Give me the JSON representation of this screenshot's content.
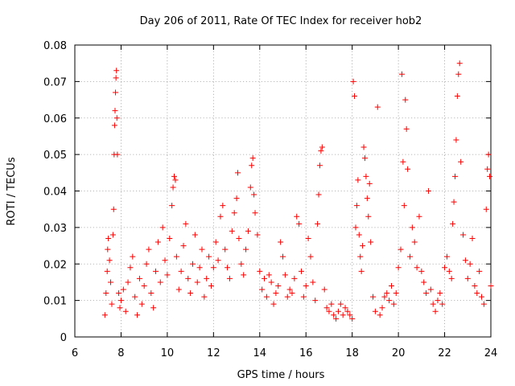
{
  "chart_data": {
    "type": "scatter",
    "title": "Day 206 of 2011, Rate Of TEC Index for receiver hob2",
    "xlabel": "GPS time / hours",
    "ylabel": "ROTI / TECUs",
    "xlim": [
      6,
      24
    ],
    "ylim": [
      0,
      0.08
    ],
    "xticks": [
      6,
      8,
      10,
      12,
      14,
      16,
      18,
      20,
      22,
      24
    ],
    "xtick_labels": [
      "6",
      "8",
      "10",
      "12",
      "14",
      "16",
      "18",
      "20",
      "22",
      "24"
    ],
    "yticks": [
      0,
      0.01,
      0.02,
      0.03,
      0.04,
      0.05,
      0.06,
      0.07,
      0.08
    ],
    "ytick_labels": [
      "0",
      "0.01",
      "0.02",
      "0.03",
      "0.04",
      "0.05",
      "0.06",
      "0.07",
      "0.08"
    ],
    "grid": true,
    "marker": "+",
    "color": "#ff0000",
    "series": [
      {
        "name": "ROTI",
        "points": [
          [
            7.3,
            0.006
          ],
          [
            7.35,
            0.012
          ],
          [
            7.4,
            0.018
          ],
          [
            7.42,
            0.024
          ],
          [
            7.45,
            0.027
          ],
          [
            7.5,
            0.021
          ],
          [
            7.55,
            0.015
          ],
          [
            7.6,
            0.009
          ],
          [
            7.65,
            0.028
          ],
          [
            7.68,
            0.035
          ],
          [
            7.7,
            0.05
          ],
          [
            7.72,
            0.058
          ],
          [
            7.74,
            0.062
          ],
          [
            7.76,
            0.067
          ],
          [
            7.78,
            0.071
          ],
          [
            7.8,
            0.073
          ],
          [
            7.82,
            0.06
          ],
          [
            7.84,
            0.05
          ],
          [
            7.9,
            0.012
          ],
          [
            7.95,
            0.008
          ],
          [
            8.0,
            0.01
          ],
          [
            8.1,
            0.013
          ],
          [
            8.2,
            0.007
          ],
          [
            8.3,
            0.015
          ],
          [
            8.4,
            0.019
          ],
          [
            8.5,
            0.022
          ],
          [
            8.6,
            0.011
          ],
          [
            8.7,
            0.006
          ],
          [
            8.8,
            0.016
          ],
          [
            8.9,
            0.009
          ],
          [
            9.0,
            0.014
          ],
          [
            9.1,
            0.02
          ],
          [
            9.2,
            0.024
          ],
          [
            9.3,
            0.012
          ],
          [
            9.4,
            0.008
          ],
          [
            9.5,
            0.018
          ],
          [
            9.6,
            0.026
          ],
          [
            9.7,
            0.015
          ],
          [
            9.8,
            0.03
          ],
          [
            9.9,
            0.021
          ],
          [
            10.0,
            0.017
          ],
          [
            10.1,
            0.027
          ],
          [
            10.2,
            0.036
          ],
          [
            10.25,
            0.041
          ],
          [
            10.3,
            0.044
          ],
          [
            10.35,
            0.043
          ],
          [
            10.4,
            0.022
          ],
          [
            10.5,
            0.013
          ],
          [
            10.6,
            0.018
          ],
          [
            10.7,
            0.025
          ],
          [
            10.8,
            0.031
          ],
          [
            10.9,
            0.016
          ],
          [
            11.0,
            0.012
          ],
          [
            11.1,
            0.02
          ],
          [
            11.2,
            0.028
          ],
          [
            11.3,
            0.015
          ],
          [
            11.4,
            0.019
          ],
          [
            11.5,
            0.024
          ],
          [
            11.6,
            0.011
          ],
          [
            11.7,
            0.016
          ],
          [
            11.8,
            0.022
          ],
          [
            11.9,
            0.014
          ],
          [
            12.0,
            0.019
          ],
          [
            12.1,
            0.026
          ],
          [
            12.2,
            0.021
          ],
          [
            12.3,
            0.033
          ],
          [
            12.4,
            0.036
          ],
          [
            12.5,
            0.024
          ],
          [
            12.6,
            0.019
          ],
          [
            12.7,
            0.016
          ],
          [
            12.8,
            0.029
          ],
          [
            12.9,
            0.034
          ],
          [
            13.0,
            0.038
          ],
          [
            13.05,
            0.045
          ],
          [
            13.1,
            0.027
          ],
          [
            13.2,
            0.02
          ],
          [
            13.3,
            0.017
          ],
          [
            13.4,
            0.024
          ],
          [
            13.5,
            0.029
          ],
          [
            13.6,
            0.041
          ],
          [
            13.65,
            0.047
          ],
          [
            13.7,
            0.049
          ],
          [
            13.75,
            0.039
          ],
          [
            13.8,
            0.034
          ],
          [
            13.9,
            0.028
          ],
          [
            14.0,
            0.018
          ],
          [
            14.1,
            0.013
          ],
          [
            14.2,
            0.016
          ],
          [
            14.3,
            0.011
          ],
          [
            14.4,
            0.017
          ],
          [
            14.5,
            0.015
          ],
          [
            14.6,
            0.009
          ],
          [
            14.7,
            0.012
          ],
          [
            14.8,
            0.014
          ],
          [
            14.9,
            0.026
          ],
          [
            15.0,
            0.022
          ],
          [
            15.1,
            0.017
          ],
          [
            15.2,
            0.011
          ],
          [
            15.3,
            0.013
          ],
          [
            15.4,
            0.012
          ],
          [
            15.5,
            0.016
          ],
          [
            15.6,
            0.033
          ],
          [
            15.7,
            0.031
          ],
          [
            15.8,
            0.018
          ],
          [
            15.9,
            0.011
          ],
          [
            16.0,
            0.014
          ],
          [
            16.1,
            0.027
          ],
          [
            16.2,
            0.022
          ],
          [
            16.3,
            0.015
          ],
          [
            16.4,
            0.01
          ],
          [
            16.5,
            0.031
          ],
          [
            16.55,
            0.039
          ],
          [
            16.6,
            0.047
          ],
          [
            16.65,
            0.051
          ],
          [
            16.7,
            0.052
          ],
          [
            16.8,
            0.013
          ],
          [
            16.9,
            0.008
          ],
          [
            17.0,
            0.007
          ],
          [
            17.1,
            0.009
          ],
          [
            17.2,
            0.006
          ],
          [
            17.3,
            0.005
          ],
          [
            17.4,
            0.007
          ],
          [
            17.5,
            0.009
          ],
          [
            17.6,
            0.006
          ],
          [
            17.7,
            0.008
          ],
          [
            17.8,
            0.007
          ],
          [
            17.9,
            0.006
          ],
          [
            18.0,
            0.005
          ],
          [
            18.05,
            0.07
          ],
          [
            18.1,
            0.066
          ],
          [
            18.15,
            0.03
          ],
          [
            18.2,
            0.036
          ],
          [
            18.25,
            0.043
          ],
          [
            18.3,
            0.028
          ],
          [
            18.35,
            0.022
          ],
          [
            18.4,
            0.018
          ],
          [
            18.45,
            0.025
          ],
          [
            18.5,
            0.052
          ],
          [
            18.55,
            0.049
          ],
          [
            18.6,
            0.044
          ],
          [
            18.65,
            0.038
          ],
          [
            18.7,
            0.033
          ],
          [
            18.75,
            0.042
          ],
          [
            18.8,
            0.026
          ],
          [
            18.9,
            0.011
          ],
          [
            19.0,
            0.007
          ],
          [
            19.1,
            0.063
          ],
          [
            19.2,
            0.006
          ],
          [
            19.3,
            0.008
          ],
          [
            19.4,
            0.011
          ],
          [
            19.5,
            0.012
          ],
          [
            19.6,
            0.01
          ],
          [
            19.7,
            0.014
          ],
          [
            19.8,
            0.009
          ],
          [
            19.9,
            0.012
          ],
          [
            20.0,
            0.019
          ],
          [
            20.1,
            0.024
          ],
          [
            20.15,
            0.072
          ],
          [
            20.2,
            0.048
          ],
          [
            20.25,
            0.036
          ],
          [
            20.3,
            0.065
          ],
          [
            20.35,
            0.057
          ],
          [
            20.4,
            0.046
          ],
          [
            20.5,
            0.022
          ],
          [
            20.6,
            0.03
          ],
          [
            20.7,
            0.026
          ],
          [
            20.8,
            0.019
          ],
          [
            20.9,
            0.033
          ],
          [
            21.0,
            0.018
          ],
          [
            21.1,
            0.015
          ],
          [
            21.2,
            0.012
          ],
          [
            21.3,
            0.04
          ],
          [
            21.4,
            0.013
          ],
          [
            21.5,
            0.009
          ],
          [
            21.6,
            0.007
          ],
          [
            21.7,
            0.01
          ],
          [
            21.8,
            0.012
          ],
          [
            21.9,
            0.009
          ],
          [
            22.0,
            0.019
          ],
          [
            22.1,
            0.022
          ],
          [
            22.2,
            0.018
          ],
          [
            22.3,
            0.016
          ],
          [
            22.35,
            0.031
          ],
          [
            22.4,
            0.037
          ],
          [
            22.45,
            0.044
          ],
          [
            22.5,
            0.054
          ],
          [
            22.55,
            0.066
          ],
          [
            22.6,
            0.072
          ],
          [
            22.65,
            0.075
          ],
          [
            22.7,
            0.048
          ],
          [
            22.8,
            0.028
          ],
          [
            22.9,
            0.021
          ],
          [
            23.0,
            0.016
          ],
          [
            23.1,
            0.02
          ],
          [
            23.2,
            0.027
          ],
          [
            23.3,
            0.014
          ],
          [
            23.4,
            0.012
          ],
          [
            23.5,
            0.018
          ],
          [
            23.6,
            0.011
          ],
          [
            23.7,
            0.009
          ],
          [
            23.8,
            0.035
          ],
          [
            23.85,
            0.046
          ],
          [
            23.9,
            0.05
          ],
          [
            23.95,
            0.044
          ],
          [
            24.0,
            0.014
          ]
        ]
      }
    ]
  }
}
